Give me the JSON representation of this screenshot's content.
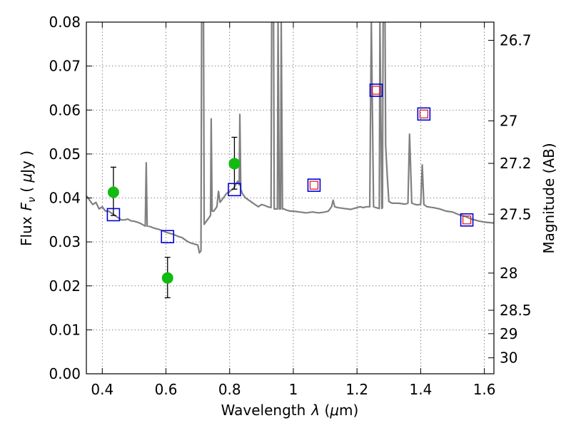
{
  "chart_data": {
    "type": "scatter",
    "title": "",
    "xlabel": "Wavelength",
    "xlabel_symbol": "λ",
    "xlabel_unit_open": " (",
    "xlabel_mu": "μ",
    "xlabel_unit_rest": "m)",
    "ylabel": "Flux",
    "ylabel_symbol": "F",
    "ylabel_subscript": "ν",
    "ylabel_unit_open": " ( ",
    "ylabel_mu": "μ",
    "ylabel_unit_rest": "Jy )",
    "ylabel_right": "Magnitude (AB)",
    "xlim": [
      0.35,
      1.63
    ],
    "ylim": [
      0.0,
      0.08
    ],
    "xticks": [
      0.4,
      0.6,
      0.8,
      1.0,
      1.2,
      1.4,
      1.6
    ],
    "xtick_labels": [
      "0.4",
      "0.6",
      "0.8",
      "1",
      "1.2",
      "1.4",
      "1.6"
    ],
    "yticks": [
      0.0,
      0.01,
      0.02,
      0.03,
      0.04,
      0.05,
      0.06,
      0.07,
      0.08
    ],
    "ytick_labels": [
      "0.00",
      "0.01",
      "0.02",
      "0.03",
      "0.04",
      "0.05",
      "0.06",
      "0.07",
      "0.08"
    ],
    "right_ticks": [
      {
        "label": "26.7",
        "mag": 26.7
      },
      {
        "label": "27",
        "mag": 27.0
      },
      {
        "label": "27.2",
        "mag": 27.2
      },
      {
        "label": "27.5",
        "mag": 27.5
      },
      {
        "label": "28",
        "mag": 28.0
      },
      {
        "label": "28.5",
        "mag": 28.5
      },
      {
        "label": "29",
        "mag": 29.0
      },
      {
        "label": "30",
        "mag": 30.0
      }
    ],
    "grid": true,
    "colors": {
      "spectrum": "#808080",
      "observed": "#11bb11",
      "model_outer": "#0000dd",
      "model_inner": "#dd1111",
      "error_bar": "#000000"
    },
    "series": [
      {
        "kind": "line",
        "points": [
          [
            0.35,
            0.0405
          ],
          [
            0.36,
            0.0395
          ],
          [
            0.37,
            0.0385
          ],
          [
            0.38,
            0.039
          ],
          [
            0.39,
            0.0375
          ],
          [
            0.4,
            0.038
          ],
          [
            0.41,
            0.037
          ],
          [
            0.42,
            0.037
          ],
          [
            0.43,
            0.0365
          ],
          [
            0.44,
            0.036
          ],
          [
            0.45,
            0.0355
          ],
          [
            0.46,
            0.035
          ],
          [
            0.47,
            0.035
          ],
          [
            0.48,
            0.0352
          ],
          [
            0.49,
            0.0348
          ],
          [
            0.5,
            0.0347
          ],
          [
            0.51,
            0.0345
          ],
          [
            0.52,
            0.0342
          ],
          [
            0.53,
            0.0338
          ],
          [
            0.535,
            0.0336
          ],
          [
            0.538,
            0.048
          ],
          [
            0.541,
            0.0336
          ],
          [
            0.55,
            0.0335
          ],
          [
            0.56,
            0.0332
          ],
          [
            0.57,
            0.033
          ],
          [
            0.58,
            0.0328
          ],
          [
            0.59,
            0.0325
          ],
          [
            0.6,
            0.0322
          ],
          [
            0.61,
            0.032
          ],
          [
            0.62,
            0.0318
          ],
          [
            0.63,
            0.0315
          ],
          [
            0.64,
            0.0312
          ],
          [
            0.65,
            0.031
          ],
          [
            0.66,
            0.0305
          ],
          [
            0.67,
            0.03
          ],
          [
            0.68,
            0.0297
          ],
          [
            0.69,
            0.0295
          ],
          [
            0.7,
            0.0293
          ],
          [
            0.705,
            0.0275
          ],
          [
            0.71,
            0.028
          ],
          [
            0.712,
            0.08
          ],
          [
            0.718,
            0.08
          ],
          [
            0.72,
            0.034
          ],
          [
            0.73,
            0.035
          ],
          [
            0.74,
            0.036
          ],
          [
            0.742,
            0.058
          ],
          [
            0.745,
            0.037
          ],
          [
            0.75,
            0.037
          ],
          [
            0.76,
            0.038
          ],
          [
            0.765,
            0.0415
          ],
          [
            0.77,
            0.039
          ],
          [
            0.78,
            0.04
          ],
          [
            0.79,
            0.041
          ],
          [
            0.8,
            0.0415
          ],
          [
            0.81,
            0.042
          ],
          [
            0.815,
            0.0425
          ],
          [
            0.82,
            0.0432
          ],
          [
            0.825,
            0.0438
          ],
          [
            0.83,
            0.043
          ],
          [
            0.832,
            0.059
          ],
          [
            0.835,
            0.042
          ],
          [
            0.84,
            0.041
          ],
          [
            0.85,
            0.04
          ],
          [
            0.86,
            0.0395
          ],
          [
            0.87,
            0.039
          ],
          [
            0.88,
            0.0385
          ],
          [
            0.89,
            0.038
          ],
          [
            0.9,
            0.0385
          ],
          [
            0.91,
            0.0383
          ],
          [
            0.92,
            0.038
          ],
          [
            0.93,
            0.0378
          ],
          [
            0.932,
            0.08
          ],
          [
            0.938,
            0.08
          ],
          [
            0.94,
            0.0375
          ],
          [
            0.95,
            0.0375
          ],
          [
            0.952,
            0.08
          ],
          [
            0.956,
            0.0375
          ],
          [
            0.96,
            0.0375
          ],
          [
            0.962,
            0.08
          ],
          [
            0.966,
            0.0375
          ],
          [
            0.97,
            0.0375
          ],
          [
            0.98,
            0.0372
          ],
          [
            0.99,
            0.037
          ],
          [
            1.0,
            0.037
          ],
          [
            1.02,
            0.0368
          ],
          [
            1.04,
            0.0366
          ],
          [
            1.06,
            0.0368
          ],
          [
            1.08,
            0.0366
          ],
          [
            1.1,
            0.0368
          ],
          [
            1.11,
            0.037
          ],
          [
            1.12,
            0.038
          ],
          [
            1.125,
            0.0395
          ],
          [
            1.13,
            0.038
          ],
          [
            1.14,
            0.0378
          ],
          [
            1.16,
            0.0376
          ],
          [
            1.18,
            0.0374
          ],
          [
            1.2,
            0.0378
          ],
          [
            1.21,
            0.038
          ],
          [
            1.22,
            0.0378
          ],
          [
            1.23,
            0.038
          ],
          [
            1.24,
            0.038
          ],
          [
            1.245,
            0.08
          ],
          [
            1.252,
            0.038
          ],
          [
            1.26,
            0.0378
          ],
          [
            1.27,
            0.0376
          ],
          [
            1.272,
            0.08
          ],
          [
            1.278,
            0.0376
          ],
          [
            1.28,
            0.0378
          ],
          [
            1.282,
            0.08
          ],
          [
            1.288,
            0.08
          ],
          [
            1.29,
            0.052
          ],
          [
            1.295,
            0.045
          ],
          [
            1.3,
            0.0392
          ],
          [
            1.31,
            0.0388
          ],
          [
            1.33,
            0.0388
          ],
          [
            1.35,
            0.0386
          ],
          [
            1.36,
            0.0388
          ],
          [
            1.365,
            0.0545
          ],
          [
            1.372,
            0.0388
          ],
          [
            1.38,
            0.0386
          ],
          [
            1.39,
            0.0384
          ],
          [
            1.4,
            0.0386
          ],
          [
            1.405,
            0.0475
          ],
          [
            1.41,
            0.0385
          ],
          [
            1.42,
            0.038
          ],
          [
            1.44,
            0.0378
          ],
          [
            1.46,
            0.0375
          ],
          [
            1.48,
            0.037
          ],
          [
            1.5,
            0.0368
          ],
          [
            1.52,
            0.0362
          ],
          [
            1.54,
            0.0358
          ],
          [
            1.56,
            0.0352
          ],
          [
            1.58,
            0.0348
          ],
          [
            1.6,
            0.0345
          ],
          [
            1.63,
            0.0343
          ]
        ]
      },
      {
        "kind": "points_with_errors",
        "points": [
          {
            "x": 0.435,
            "y": 0.0413,
            "err_lo": 0.0053,
            "err_hi": 0.0057
          },
          {
            "x": 0.605,
            "y": 0.0218,
            "err_lo": 0.0045,
            "err_hi": 0.0047
          },
          {
            "x": 0.815,
            "y": 0.0478,
            "err_lo": 0.0058,
            "err_hi": 0.006
          }
        ]
      },
      {
        "kind": "model_squares",
        "points": [
          {
            "x": 0.435,
            "y": 0.0362
          },
          {
            "x": 0.605,
            "y": 0.0312
          },
          {
            "x": 0.815,
            "y": 0.0419
          },
          {
            "x": 1.065,
            "y": 0.0429
          },
          {
            "x": 1.26,
            "y": 0.0645
          },
          {
            "x": 1.41,
            "y": 0.0591
          },
          {
            "x": 1.545,
            "y": 0.035
          }
        ]
      },
      {
        "kind": "model_inner_squares",
        "points": [
          {
            "x": 1.065,
            "y": 0.0429
          },
          {
            "x": 1.26,
            "y": 0.0645
          },
          {
            "x": 1.41,
            "y": 0.0591
          },
          {
            "x": 1.545,
            "y": 0.035
          }
        ]
      }
    ]
  }
}
